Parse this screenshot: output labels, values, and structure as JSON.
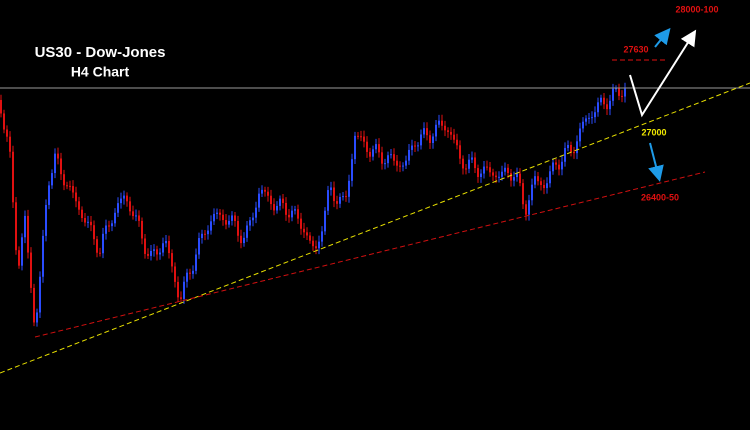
{
  "header": {
    "title": "US30 - Dow-Jones",
    "subtitle": "H4 Chart"
  },
  "levels": {
    "target": "28000-100",
    "resistance": "27630",
    "support": "27000",
    "lower_support": "26400-50"
  }
}
